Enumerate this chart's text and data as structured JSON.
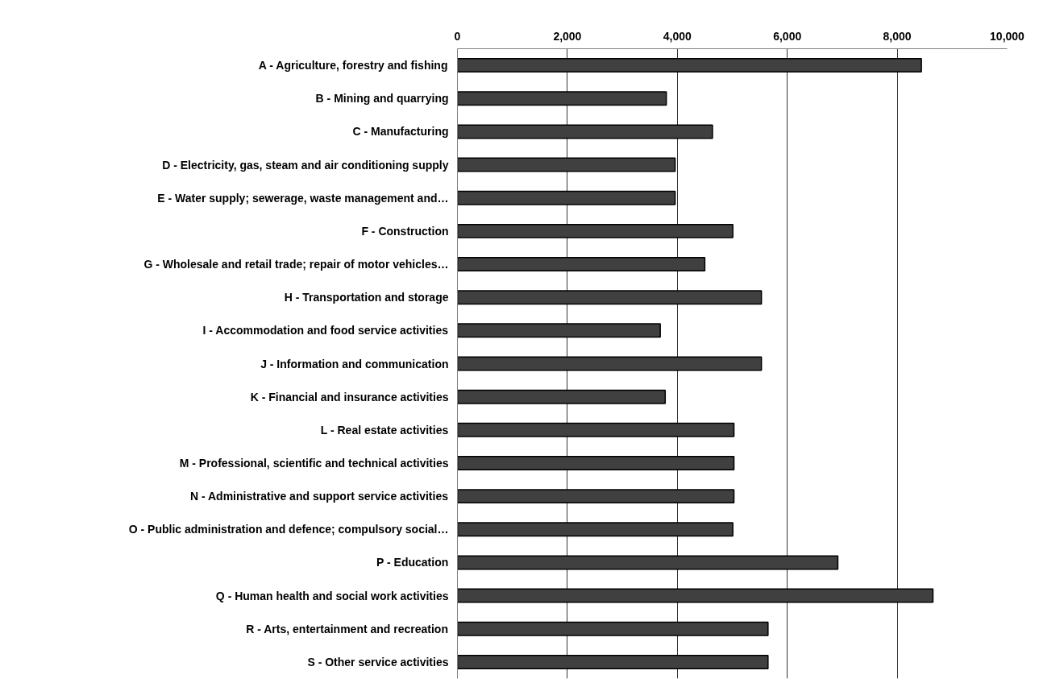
{
  "chart_data": {
    "type": "bar",
    "orientation": "horizontal",
    "categories": [
      "A - Agriculture, forestry and fishing",
      "B - Mining and quarrying",
      "C - Manufacturing",
      "D - Electricity, gas, steam and air conditioning supply",
      "E - Water supply; sewerage, waste management and…",
      "F - Construction",
      "G - Wholesale and retail trade; repair of motor vehicles…",
      "H - Transportation and storage",
      "I - Accommodation and food service activities",
      "J - Information and communication",
      "K - Financial and insurance activities",
      "L - Real estate activities",
      "M - Professional, scientific and technical activities",
      "N - Administrative and support service activities",
      "O - Public administration and defence; compulsory social…",
      "P - Education",
      "Q - Human health and social work activities",
      "R - Arts, entertainment and recreation",
      "S - Other service activities"
    ],
    "values": [
      8440,
      3800,
      4640,
      3960,
      3960,
      5010,
      4500,
      5530,
      3690,
      5530,
      3780,
      5030,
      5030,
      5030,
      5010,
      6920,
      8650,
      5650,
      5650
    ],
    "color": "#404040",
    "xlim": [
      0,
      10000
    ],
    "xticks": [
      {
        "value": 0,
        "label": "0"
      },
      {
        "value": 2000,
        "label": "2,000"
      },
      {
        "value": 4000,
        "label": "4,000"
      },
      {
        "value": 6000,
        "label": "6,000"
      },
      {
        "value": 8000,
        "label": "8,000"
      },
      {
        "value": 10000,
        "label": "10,000"
      }
    ],
    "grid": "x"
  }
}
